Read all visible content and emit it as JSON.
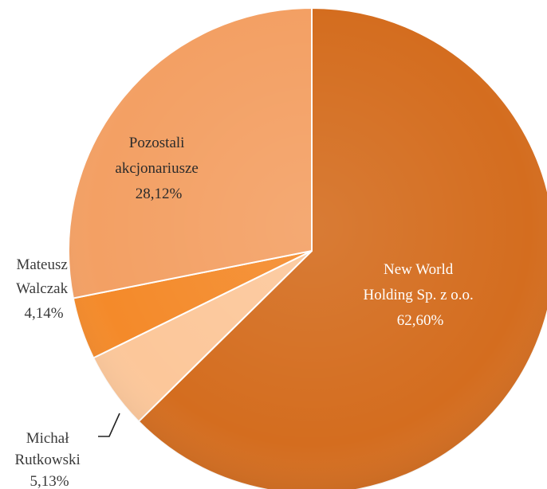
{
  "chart_data": {
    "type": "pie",
    "title": "",
    "start_angle_deg": 0,
    "direction": "clockwise",
    "slices": [
      {
        "label_lines": [
          "New World",
          "Holding Sp. z o.o.",
          "62,60%"
        ],
        "value": 62.6,
        "color": "#d46d1f"
      },
      {
        "label_lines": [
          "Michał",
          "Rutkowski",
          "5,13%"
        ],
        "value": 5.13,
        "color": "#fcc79a"
      },
      {
        "label_lines": [
          "Mateusz",
          "Walczak",
          "4,14%"
        ],
        "value": 4.14,
        "color": "#f48a2a"
      },
      {
        "label_lines": [
          "Pozostali",
          "akcjonariusze",
          "28,12%"
        ],
        "value": 28.12,
        "color": "#f3a064"
      }
    ]
  }
}
